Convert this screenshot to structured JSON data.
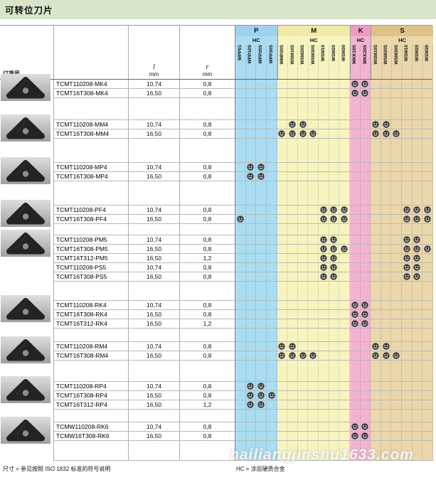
{
  "title": "可转位刀片",
  "header": {
    "order_col": "订货号",
    "l_col": {
      "top": "l",
      "bottom": "mm"
    },
    "r_col": {
      "top": "r",
      "bottom": "mm"
    }
  },
  "grade_groups": [
    {
      "label": "P",
      "sub": "HC",
      "band": "#9fd2ee",
      "fill": "#aadcf2",
      "cols": [
        "WPP01",
        "WPP10S",
        "WPP20S",
        "WPP30S"
      ]
    },
    {
      "label": "M",
      "sub": "HC",
      "band": "#f0e9a8",
      "fill": "#f8f4c0",
      "cols": [
        "WMP20S",
        "WSM10S",
        "WSM20S",
        "WSM30S",
        "WSM10",
        "WSM20",
        "WSM30"
      ]
    },
    {
      "label": "K",
      "sub": "HC",
      "band": "#ee9cc4",
      "fill": "#f2b4d2",
      "cols": [
        "WKK10S",
        "WKK20S"
      ]
    },
    {
      "label": "S",
      "sub": "HC",
      "band": "#ddc387",
      "fill": "#ead7ab",
      "cols": [
        "WSM10S",
        "WSM20S",
        "WSM30S",
        "WSM10",
        "WSM20",
        "WSM30"
      ]
    }
  ],
  "row_groups": [
    {
      "gap_after": 31,
      "rows": [
        {
          "order": "TCMT110208-MK4",
          "l": "10,74",
          "r": "0,8",
          "grades": [
            11,
            12
          ]
        },
        {
          "order": "TCMT16T308-MK4",
          "l": "16,50",
          "r": "0,8",
          "grades": [
            11,
            12
          ]
        }
      ]
    },
    {
      "gap_after": 34,
      "rows": [
        {
          "order": "TCMT110208-MM4",
          "l": "10,74",
          "r": "0,8",
          "grades": [
            5,
            6,
            13,
            14
          ]
        },
        {
          "order": "TCMT16T308-MM4",
          "l": "16,50",
          "r": "0,8",
          "grades": [
            4,
            5,
            6,
            7,
            13,
            14,
            15
          ]
        }
      ]
    },
    {
      "gap_after": 34,
      "rows": [
        {
          "order": "TCMT110208-MP4",
          "l": "10,74",
          "r": "0,8",
          "grades": [
            1,
            2
          ]
        },
        {
          "order": "TCMT16T308-MP4",
          "l": "16,50",
          "r": "0,8",
          "grades": [
            1,
            2
          ]
        }
      ]
    },
    {
      "gap_after": 16,
      "rows": [
        {
          "order": "TCMT110208-PF4",
          "l": "10,74",
          "r": "0,8",
          "grades": [
            8,
            9,
            10,
            16,
            17,
            18
          ]
        },
        {
          "order": "TCMT16T308-PF4",
          "l": "16,50",
          "r": "0,8",
          "grades": [
            0,
            8,
            9,
            10,
            16,
            17,
            18
          ]
        }
      ]
    },
    {
      "gap_after": 27,
      "rows": [
        {
          "order": "TCMT110208-PM5",
          "l": "10,74",
          "r": "0,8",
          "grades": [
            8,
            9,
            16,
            17
          ]
        },
        {
          "order": "TCMT16T308-PM5",
          "l": "16,50",
          "r": "0,8",
          "grades": [
            8,
            9,
            10,
            16,
            17,
            18
          ]
        },
        {
          "order": "TCMT16T312-PM5",
          "l": "16,50",
          "r": "1,2",
          "grades": [
            8,
            9,
            16,
            17
          ]
        },
        {
          "order": "TCMT110208-PS5",
          "l": "10,74",
          "r": "0,8",
          "grades": [
            8,
            9,
            16,
            17
          ]
        },
        {
          "order": "TCMT16T308-PS5",
          "l": "16,50",
          "r": "0,8",
          "grades": [
            8,
            9,
            16,
            17
          ]
        }
      ]
    },
    {
      "gap_after": 19,
      "rows": [
        {
          "order": "TCMT110208-RK4",
          "l": "10,74",
          "r": "0,8",
          "grades": [
            11,
            12
          ]
        },
        {
          "order": "TCMT16T308-RK4",
          "l": "16,50",
          "r": "0,8",
          "grades": [
            11,
            12
          ]
        },
        {
          "order": "TCMT16T312-RK4",
          "l": "16,50",
          "r": "1,2",
          "grades": [
            11,
            12
          ]
        }
      ]
    },
    {
      "gap_after": 30,
      "rows": [
        {
          "order": "TCMT110208-RM4",
          "l": "10,74",
          "r": "0,8",
          "grades": [
            4,
            5,
            13,
            14
          ]
        },
        {
          "order": "TCMT16T308-RM4",
          "l": "16,50",
          "r": "0,8",
          "grades": [
            4,
            5,
            6,
            7,
            13,
            14,
            15
          ]
        }
      ]
    },
    {
      "gap_after": 18,
      "rows": [
        {
          "order": "TCMT110208-RP4",
          "l": "10,74",
          "r": "0,8",
          "grades": [
            1,
            2
          ]
        },
        {
          "order": "TCMT16T308-RP4",
          "l": "16,50",
          "r": "0,8",
          "grades": [
            1,
            2,
            3
          ]
        },
        {
          "order": "TCMT16T312-RP4",
          "l": "16,50",
          "r": "1,2",
          "grades": [
            1,
            2
          ]
        }
      ]
    },
    {
      "gap_after": 28,
      "rows": [
        {
          "order": "TCMW110208-RK6",
          "l": "10,74",
          "r": "0,8",
          "grades": [
            11,
            12
          ]
        },
        {
          "order": "TCMW16T308-RK6",
          "l": "16,50",
          "r": "0,8",
          "grades": [
            11,
            12
          ]
        }
      ]
    }
  ],
  "footnotes": {
    "left": "尺寸 = 参见按照 ISO 1832 标准的符号说明",
    "right": "HC = 涂层硬质合金"
  },
  "watermark": "hailiangjinshu1633.com"
}
